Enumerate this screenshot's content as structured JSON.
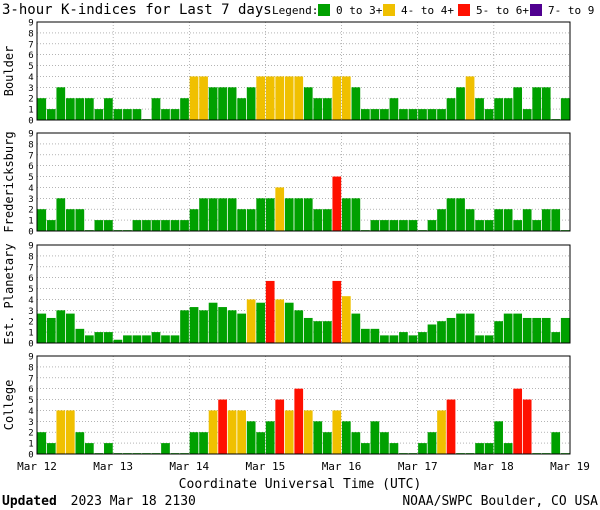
{
  "chart_data": {
    "type": "bar",
    "title": "3-hour K-indices for Last 7 days",
    "legend_title": "Legend:",
    "legend": [
      {
        "label": "0 to 3+",
        "color": "#00a000"
      },
      {
        "label": "4- to 4+",
        "color": "#f0c000"
      },
      {
        "label": "5- to 6+",
        "color": "#ff1000"
      },
      {
        "label": "7- to 9",
        "color": "#500090"
      }
    ],
    "ylim": [
      0,
      9
    ],
    "yticks": [
      "0",
      "1",
      "2",
      "3",
      "4",
      "5",
      "6",
      "7",
      "8",
      "9"
    ],
    "grid": true,
    "xlabel": "Coordinate Universal Time (UTC)",
    "day_labels": [
      "Mar 12",
      "Mar 13",
      "Mar 14",
      "Mar 15",
      "Mar 16",
      "Mar 17",
      "Mar 18",
      "Mar 19"
    ],
    "series": [
      {
        "name": "Boulder",
        "values": [
          2,
          1,
          3,
          2,
          2,
          2,
          1,
          2,
          1,
          1,
          1,
          0,
          2,
          1,
          1,
          2,
          4,
          4,
          3,
          3,
          3,
          2,
          3,
          4,
          4,
          4,
          4,
          4,
          3,
          2,
          2,
          4,
          4,
          3,
          1,
          1,
          1,
          2,
          1,
          1,
          1,
          1,
          1,
          2,
          3,
          4,
          2,
          1,
          2,
          2,
          3,
          1,
          3,
          3,
          0,
          2,
          0
        ]
      },
      {
        "name": "Fredericksburg",
        "values": [
          2,
          1,
          3,
          2,
          2,
          0,
          1,
          1,
          0,
          0,
          1,
          1,
          1,
          1,
          1,
          1,
          2,
          3,
          3,
          3,
          3,
          2,
          2,
          3,
          3,
          4,
          3,
          3,
          3,
          2,
          2,
          5,
          3,
          3,
          0,
          1,
          1,
          1,
          1,
          1,
          0,
          1,
          2,
          3,
          3,
          2,
          1,
          1,
          2,
          2,
          1,
          2,
          1,
          2,
          2,
          0,
          2
        ]
      },
      {
        "name": "Est. Planetary",
        "values": [
          2.7,
          2.3,
          3.0,
          2.7,
          1.3,
          0.7,
          1.0,
          1.0,
          0.3,
          0.7,
          0.7,
          0.7,
          1.0,
          0.7,
          0.7,
          3.0,
          3.3,
          3.0,
          3.7,
          3.3,
          3.0,
          2.7,
          4.0,
          3.7,
          5.7,
          4.0,
          3.7,
          3.0,
          2.3,
          2.0,
          2.0,
          5.7,
          4.3,
          2.7,
          1.3,
          1.3,
          0.7,
          0.7,
          1.0,
          0.7,
          1.0,
          1.7,
          2.0,
          2.3,
          2.7,
          2.7,
          0.7,
          0.7,
          2.0,
          2.7,
          2.7,
          2.3,
          2.3,
          2.3,
          1.0,
          2.3,
          0
        ]
      },
      {
        "name": "College",
        "values": [
          2,
          1,
          4,
          4,
          2,
          1,
          0,
          1,
          0,
          0,
          0,
          0,
          0,
          1,
          0,
          0,
          2,
          2,
          4,
          5,
          4,
          4,
          3,
          2,
          3,
          5,
          4,
          6,
          4,
          3,
          2,
          4,
          3,
          2,
          1,
          3,
          2,
          1,
          0,
          0,
          1,
          2,
          4,
          5,
          0,
          0,
          1,
          1,
          3,
          1,
          6,
          5,
          0,
          0,
          2,
          0,
          0
        ]
      }
    ]
  },
  "footer": {
    "updated_label": "Updated",
    "updated_value": "2023 Mar 18 2130",
    "credit": "NOAA/SWPC Boulder, CO USA"
  }
}
